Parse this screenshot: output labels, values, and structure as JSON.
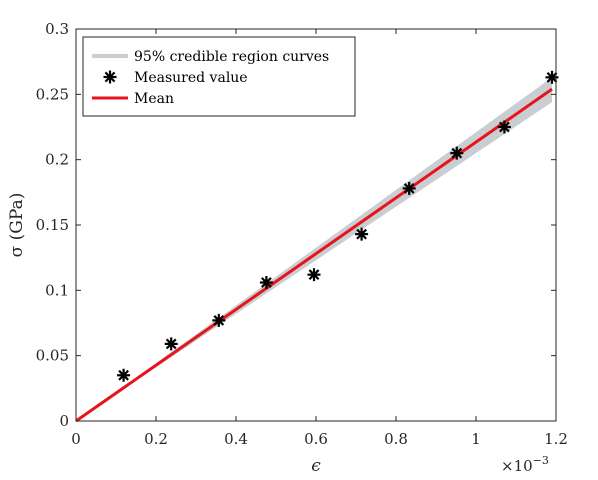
{
  "chart_data": {
    "type": "line",
    "xlabel": "ϵ",
    "ylabel": "σ (GPa)",
    "x_multiplier_label": "×10",
    "x_multiplier_exp": "−3",
    "xlim": [
      0,
      1.2
    ],
    "ylim": [
      0,
      0.3
    ],
    "x_ticks": [
      0,
      0.2,
      0.4,
      0.6,
      0.8,
      1,
      1.2
    ],
    "x_tick_labels": [
      "0",
      "0.2",
      "0.4",
      "0.6",
      "0.8",
      "1",
      "1.2"
    ],
    "y_ticks": [
      0,
      0.05,
      0.1,
      0.15,
      0.2,
      0.25,
      0.3
    ],
    "y_tick_labels": [
      "0",
      "0.05",
      "0.1",
      "0.15",
      "0.2",
      "0.25",
      "0.3"
    ],
    "grid": false,
    "legend_position": "top-left",
    "series": [
      {
        "name": "95% credible region curves",
        "kind": "band",
        "color": "#c9ced3",
        "x": [
          0,
          1.19
        ],
        "lower": [
          0,
          0.244
        ],
        "upper": [
          0,
          0.263
        ]
      },
      {
        "name": "Measured value",
        "kind": "scatter",
        "color": "#000000",
        "x": [
          0.119,
          0.238,
          0.357,
          0.476,
          0.595,
          0.714,
          0.833,
          0.952,
          1.071,
          1.19
        ],
        "y": [
          0.035,
          0.059,
          0.077,
          0.106,
          0.112,
          0.143,
          0.178,
          0.205,
          0.225,
          0.263
        ]
      },
      {
        "name": "Mean",
        "kind": "line",
        "color": "#e8141b",
        "x": [
          0,
          1.19
        ],
        "y": [
          0,
          0.254
        ]
      }
    ]
  }
}
